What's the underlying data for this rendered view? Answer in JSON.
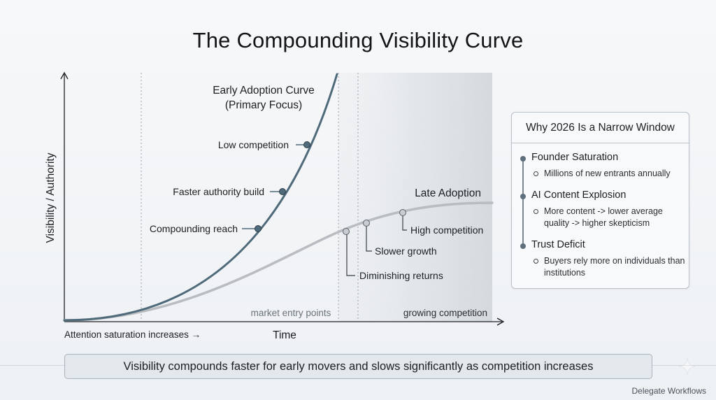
{
  "title": "The Compounding Visibility Curve",
  "axes": {
    "y_label": "Visibility / Authority",
    "x_label": "Time",
    "x_note": "Attention saturation increases →"
  },
  "zones": {
    "entry": "market entry points",
    "competition": "growing competition"
  },
  "curves": {
    "early": {
      "title": "Early Adoption Curve",
      "subtitle": "(Primary Focus)",
      "color": "#4f6a7a"
    },
    "late": {
      "title": "Late Adoption",
      "color": "#b9bcc0"
    }
  },
  "early_points": [
    "Low competition",
    "Faster authority build",
    "Compounding reach"
  ],
  "late_points": [
    "High competition",
    "Slower growth",
    "Diminishing returns"
  ],
  "panel": {
    "title": "Why 2026 Is a Narrow Window",
    "items": [
      {
        "head": "Founder Saturation",
        "sub": "Millions of new entrants annually"
      },
      {
        "head": "AI Content Explosion",
        "sub": "More content -> lower average quality -> higher skepticism"
      },
      {
        "head": "Trust Deficit",
        "sub": "Buyers rely more on individuals than institutions"
      }
    ]
  },
  "banner": "Visibility compounds faster for early movers and slows significantly as competition increases",
  "brand": "Delegate Workflows",
  "icons": {
    "brand_mark": "sparkle-icon"
  }
}
